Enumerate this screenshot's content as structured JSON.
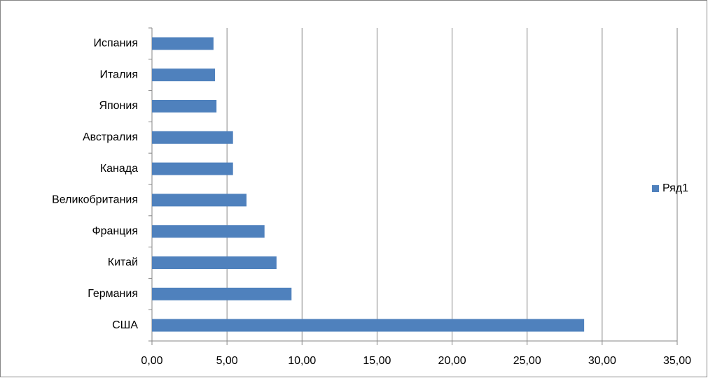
{
  "chart_data": {
    "type": "bar",
    "orientation": "horizontal",
    "categories": [
      "США",
      "Германия",
      "Китай",
      "Франция",
      "Великобритания",
      "Канада",
      "Австралия",
      "Япония",
      "Италия",
      "Испания"
    ],
    "series": [
      {
        "name": "Ряд1",
        "color": "#4f81bd",
        "values": [
          28.8,
          9.3,
          8.3,
          7.5,
          6.3,
          5.4,
          5.4,
          4.3,
          4.2,
          4.1
        ]
      }
    ],
    "xlim": [
      0,
      35
    ],
    "xticks": [
      {
        "value": 0,
        "label": "0,00"
      },
      {
        "value": 5,
        "label": "5,00"
      },
      {
        "value": 10,
        "label": "10,00"
      },
      {
        "value": 15,
        "label": "15,00"
      },
      {
        "value": 20,
        "label": "20,00"
      },
      {
        "value": 25,
        "label": "25,00"
      },
      {
        "value": 30,
        "label": "30,00"
      },
      {
        "value": 35,
        "label": "35,00"
      }
    ],
    "grid": true,
    "legend": "right"
  }
}
